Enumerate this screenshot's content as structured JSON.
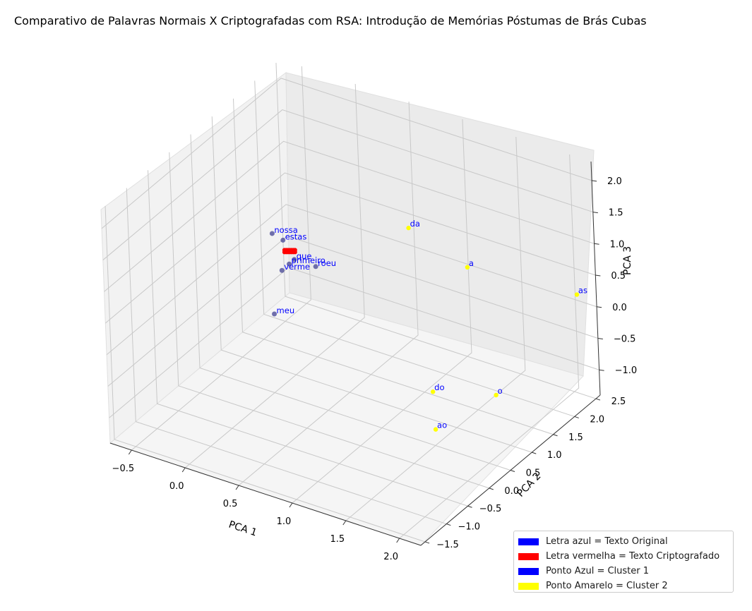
{
  "chart_data": {
    "type": "scatter",
    "title": "Comparativo de Palavras Normais X Criptografadas com RSA: Introdução de Memórias Póstumas de Brás Cubas",
    "xlabel": "PCA 1",
    "ylabel": "PCA 2",
    "zlabel": "PCA 3",
    "xlim": [
      -0.7,
      2.2
    ],
    "ylim": [
      -1.6,
      2.6
    ],
    "zlim": [
      -1.4,
      2.3
    ],
    "x_ticks": [
      "−0.5",
      "0.0",
      "0.5",
      "1.0",
      "1.5",
      "2.0"
    ],
    "y_ticks": [
      "−1.5",
      "−1.0",
      "−0.5",
      "0.0",
      "0.5",
      "1.0",
      "1.5",
      "2.0",
      "2.5"
    ],
    "z_ticks": [
      "−1.0",
      "−0.5",
      "0.0",
      "0.5",
      "1.0",
      "1.5",
      "2.0"
    ],
    "grid": true,
    "legend_position": "lower-right",
    "colors": {
      "cluster1_point": "#4d4d99",
      "cluster2_point": "#ffff00",
      "original_text": "#0000ff",
      "encrypted_text": "#ff0000"
    },
    "cluster2_words": [
      {
        "word": "da",
        "x": 0.7,
        "y": 2.0,
        "z": 0.75
      },
      {
        "word": "a",
        "x": 1.2,
        "y": 2.1,
        "z": 0.35
      },
      {
        "word": "as",
        "x": 2.1,
        "y": 2.4,
        "z": 0.25
      },
      {
        "word": "o",
        "x": 2.05,
        "y": 0.6,
        "z": -0.35
      },
      {
        "word": "do",
        "x": 1.6,
        "y": 0.25,
        "z": -0.35
      },
      {
        "word": "ao",
        "x": 2.05,
        "y": -0.8,
        "z": -0.1
      }
    ],
    "cluster1_words": [
      {
        "word": "nossa",
        "x": -0.3,
        "y": 1.3,
        "z": 0.5
      },
      {
        "word": "estas",
        "x": -0.2,
        "y": 1.3,
        "z": 0.45
      },
      {
        "word": "roeu",
        "x": 0.1,
        "y": 1.3,
        "z": 0.2
      },
      {
        "word": "meu",
        "x": 0.15,
        "y": 0.2,
        "z": 0.1
      },
      {
        "word": "verme",
        "x": -0.2,
        "y": 1.25,
        "z": 0.0
      },
      {
        "word": "primeiro",
        "x": -0.15,
        "y": 1.3,
        "z": 0.1
      },
      {
        "word": "que",
        "x": -0.1,
        "y": 1.3,
        "z": 0.2
      }
    ],
    "encrypted_cluster": {
      "label_color": "#ff0000",
      "x": -0.15,
      "y": 1.3,
      "z": 0.3
    },
    "legend": [
      {
        "label": "Letra azul = Texto Original",
        "color": "#0000ff"
      },
      {
        "label": "Letra vermelha = Texto Criptografado",
        "color": "#ff0000"
      },
      {
        "label": "Ponto Azul = Cluster 1",
        "color": "#0000ff"
      },
      {
        "label": "Ponto Amarelo = Cluster 2",
        "color": "#ffff00"
      }
    ]
  }
}
